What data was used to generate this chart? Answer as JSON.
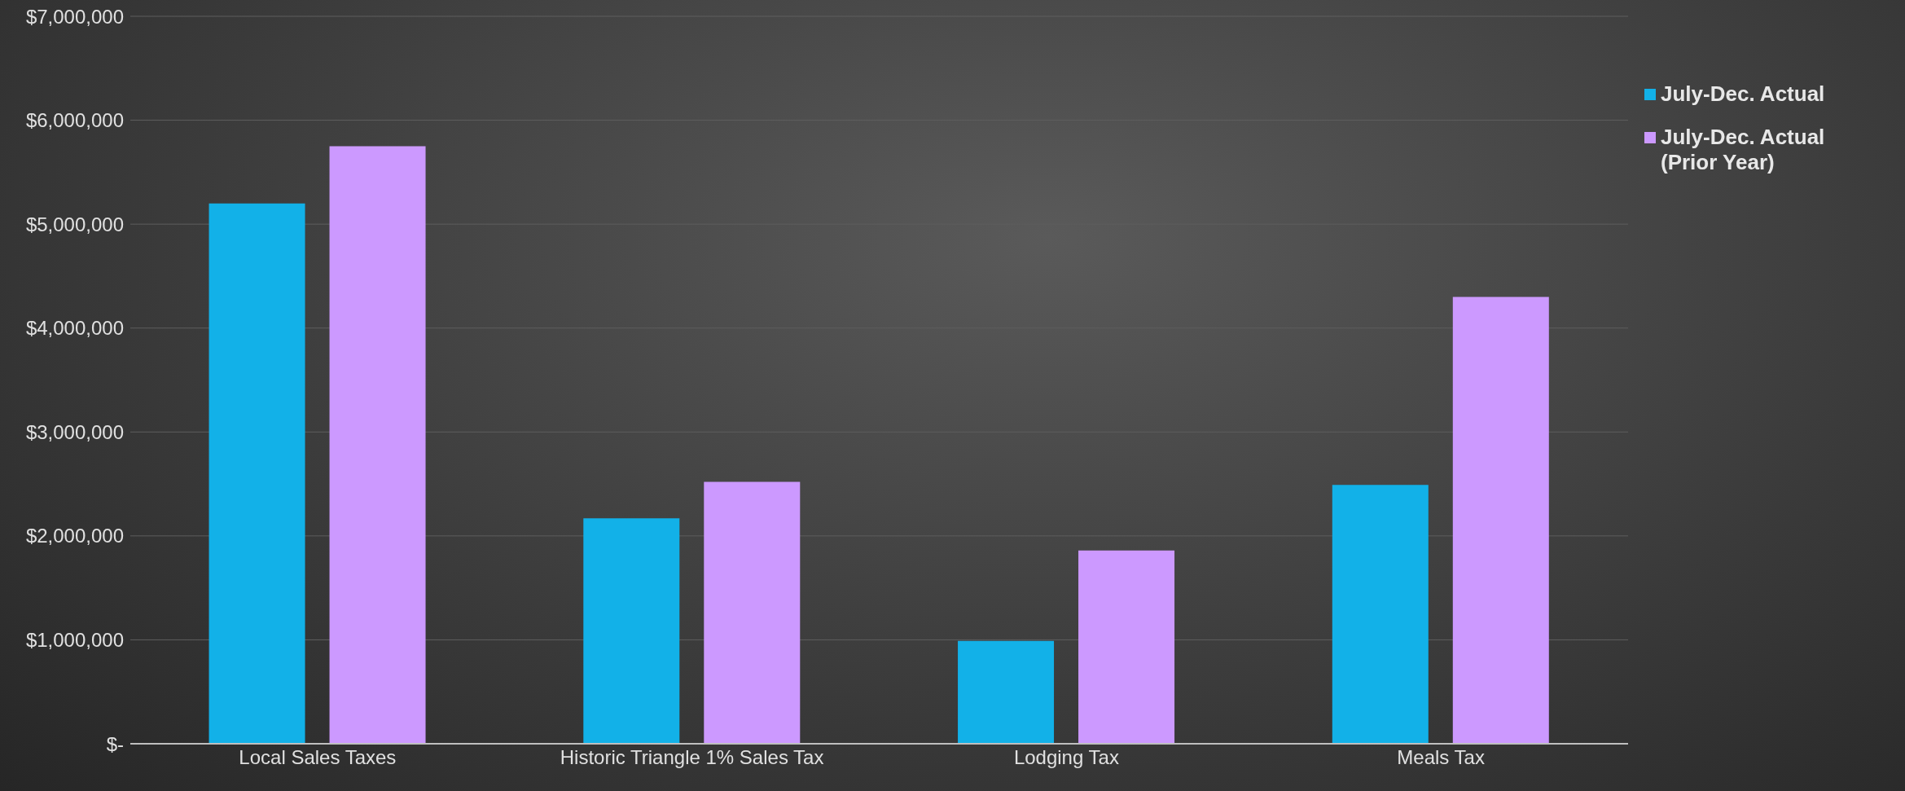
{
  "chart_data": {
    "type": "bar",
    "categories": [
      "Local Sales Taxes",
      "Historic Triangle 1% Sales Tax",
      "Lodging Tax",
      "Meals Tax"
    ],
    "series": [
      {
        "name": "July-Dec. Actual",
        "color": "#12b1e8",
        "values": [
          5200000,
          2170000,
          990000,
          2490000
        ]
      },
      {
        "name": "July-Dec. Actual (Prior Year)",
        "color": "#cc99ff",
        "values": [
          5750000,
          2520000,
          1860000,
          4300000
        ]
      }
    ],
    "ylim": [
      0,
      7000000
    ],
    "yticks": [
      {
        "value": 0,
        "label": "$-"
      },
      {
        "value": 1000000,
        "label": "$1,000,000"
      },
      {
        "value": 2000000,
        "label": "$2,000,000"
      },
      {
        "value": 3000000,
        "label": "$3,000,000"
      },
      {
        "value": 4000000,
        "label": "$4,000,000"
      },
      {
        "value": 5000000,
        "label": "$5,000,000"
      },
      {
        "value": 6000000,
        "label": "$6,000,000"
      },
      {
        "value": 7000000,
        "label": "$7,000,000"
      }
    ],
    "grid": "y",
    "legend": "top right"
  }
}
